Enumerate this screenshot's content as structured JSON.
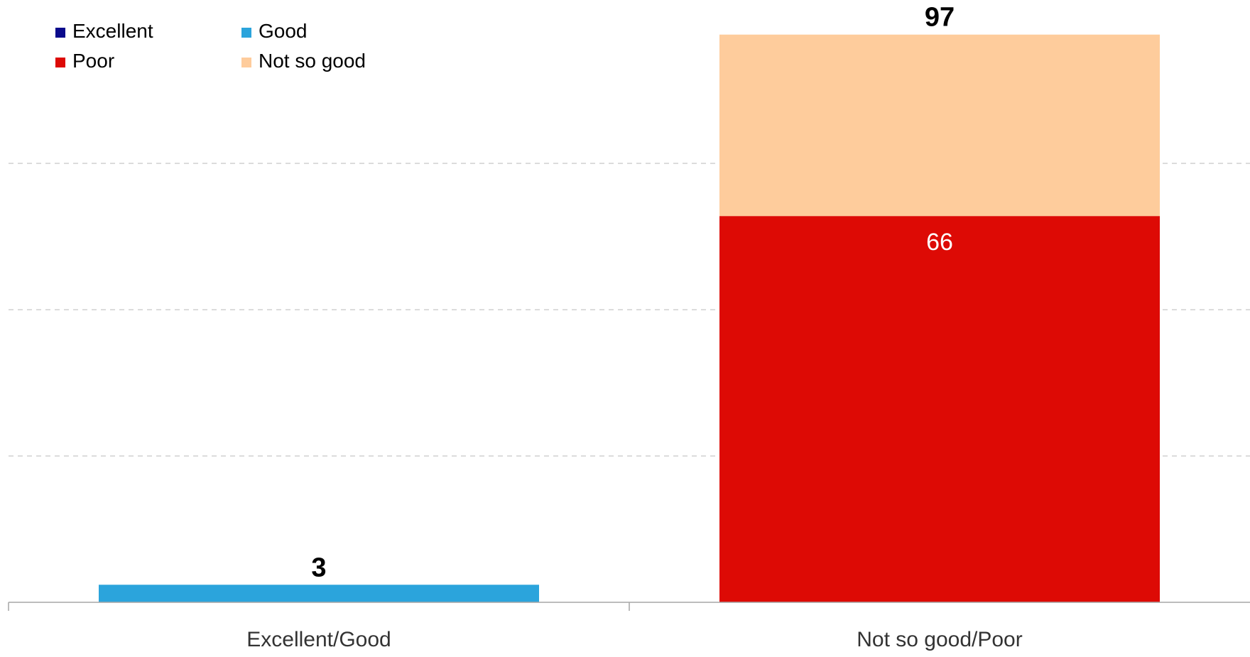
{
  "chart_data": {
    "type": "bar",
    "stacked": true,
    "categories": [
      "Excellent/Good",
      "Not so good/Poor"
    ],
    "series": [
      {
        "name": "Excellent",
        "color": "#0a0a8c",
        "values": [
          0,
          0
        ],
        "labels": [
          "",
          ""
        ]
      },
      {
        "name": "Good",
        "color": "#2ba4dc",
        "values": [
          3,
          0
        ],
        "labels": [
          "",
          ""
        ]
      },
      {
        "name": "Poor",
        "color": "#dd0a05",
        "values": [
          0,
          66
        ],
        "labels": [
          "",
          "66"
        ]
      },
      {
        "name": "Not so good",
        "color": "#fecc9c",
        "values": [
          0,
          31
        ],
        "labels": [
          "",
          ""
        ]
      }
    ],
    "totals": [
      3,
      97
    ],
    "total_labels": [
      "3",
      "97"
    ],
    "ylim": [
      0,
      100
    ],
    "grid": true,
    "legend_position": "top-left",
    "title": "",
    "xlabel": "",
    "ylabel": ""
  }
}
